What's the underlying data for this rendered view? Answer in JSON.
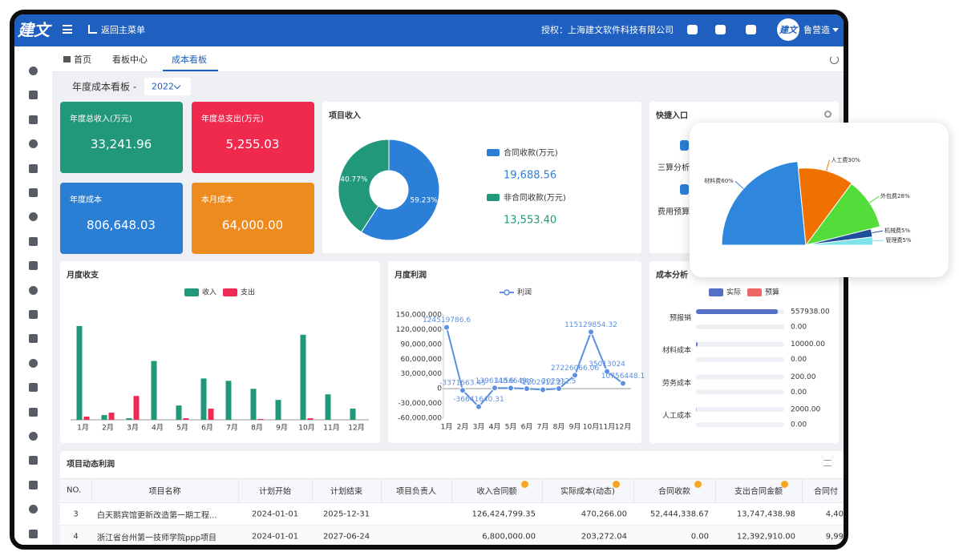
{
  "header": {
    "logo": "建文",
    "back": "返回主菜单",
    "license": "授权：上海建文软件科技有限公司",
    "user": "鲁营造"
  },
  "tabs": [
    "首页",
    "看板中心",
    "成本看板"
  ],
  "board": {
    "title": "年度成本看板 -",
    "year": "2022"
  },
  "kpis": [
    {
      "label": "年度总收入(万元)",
      "value": "33,241.96"
    },
    {
      "label": "年度总支出(万元)",
      "value": "5,255.03"
    },
    {
      "label": "年度成本",
      "value": "806,648.03"
    },
    {
      "label": "本月成本",
      "value": "64,000.00"
    }
  ],
  "quick": {
    "title": "快捷入口",
    "items": [
      "三算分析",
      "费用预算"
    ]
  },
  "chart_data": [
    {
      "type": "pie",
      "title": "项目收入",
      "donut": true,
      "categories": [
        "合同收款(万元)",
        "非合同收款(万元)"
      ],
      "values": [
        59.23,
        40.77
      ],
      "value_labels": [
        "59.23%",
        "40.77%"
      ],
      "colors": [
        "#2b7fd6",
        "#21987a"
      ],
      "amounts": [
        "19,688.56",
        "13,553.40"
      ]
    },
    {
      "type": "bar",
      "title": "月度收支",
      "categories": [
        "1月",
        "2月",
        "3月",
        "4月",
        "5月",
        "6月",
        "7月",
        "8月",
        "9月",
        "10月",
        "11月",
        "12月"
      ],
      "ylim": [
        0,
        130
      ],
      "series": [
        {
          "name": "收入",
          "color": "#21987a",
          "values": [
            118,
            6,
            2,
            74,
            18,
            52,
            49,
            39,
            25,
            107,
            32,
            14
          ]
        },
        {
          "name": "支出",
          "color": "#ee2a55",
          "values": [
            4,
            9,
            30,
            0,
            2,
            14,
            0,
            1,
            0,
            2,
            0,
            0
          ]
        }
      ]
    },
    {
      "type": "line",
      "title": "月度利润",
      "categories": [
        "1月",
        "2月",
        "3月",
        "4月",
        "5月",
        "6月",
        "7月",
        "8月",
        "9月",
        "10月",
        "11月",
        "12月"
      ],
      "grid": false,
      "series": [
        {
          "name": "利润",
          "color": "#5b8fe0",
          "values": [
            124519786.6,
            -3371663.45,
            -36641640.31,
            1396148.6,
            1156649,
            649,
            -2202912.25,
            202912.5,
            27226066.06,
            115129854.32,
            35013024,
            10756448.1
          ]
        }
      ],
      "ylim": [
        -60000000,
        150000000
      ],
      "yticks": [
        {
          "value": -60000000,
          "label": "-60,000,000"
        },
        {
          "value": -30000000,
          "label": "-30,000,000"
        },
        0,
        {
          "value": 30000000,
          "label": "30,000,000"
        },
        {
          "value": 60000000,
          "label": "60,000,000"
        },
        {
          "value": 90000000,
          "label": "90,000,000"
        },
        {
          "value": 120000000,
          "label": "120,000,000"
        },
        {
          "value": 150000000,
          "label": "150,000,000"
        }
      ]
    },
    {
      "type": "hbar",
      "title": "成本分析",
      "categories": [
        "预报销",
        "材料成本",
        "劳务成本",
        "人工成本"
      ],
      "xlim": [
        0,
        600000
      ],
      "series": [
        {
          "name": "实际",
          "color": "#5470c6",
          "values": [
            557938,
            10000,
            200,
            2000
          ],
          "value_labels": [
            "557938.00",
            "10000.00",
            "200.00",
            "2000.00"
          ]
        },
        {
          "name": "预算",
          "color": "#ee6666",
          "values": [
            0,
            0,
            0,
            0
          ],
          "value_labels": [
            "0.00",
            "0.00",
            "0.00",
            "0.00"
          ]
        }
      ]
    },
    {
      "type": "rose",
      "categories": [
        "材料费",
        "人工费",
        "外包费",
        "机械费",
        "管理费"
      ],
      "values": [
        60,
        30,
        28,
        5,
        5
      ],
      "value_labels": [
        "材料费60%",
        "人工费30%",
        "外包费28%",
        "机械费5%",
        "管理费5%"
      ],
      "colors": [
        "#2f87dd",
        "#f07000",
        "#52dd3a",
        "#1f4f9a",
        "#7ee3e8"
      ]
    }
  ],
  "table": {
    "title": "项目动态利润",
    "columns": [
      "NO.",
      "项目名称",
      "计划开始",
      "计划结束",
      "项目负责人",
      "收入合同额",
      "实际成本(动态)",
      "合同收款",
      "支出合同金额",
      "合同付"
    ],
    "rows": [
      [
        "3",
        "白天鹅宾馆更新改造第一期工程...",
        "2024-01-01",
        "2025-12-31",
        null,
        "126,424,799.35",
        "470,266.00",
        "52,444,338.67",
        "13,747,438.98",
        "4,40"
      ],
      [
        "4",
        "浙江省台州第一技师学院ppp项目",
        "2024-01-01",
        "2027-06-24",
        null,
        "6,800,000.00",
        "203,272.04",
        "0.00",
        "12,392,910.00",
        "9,99"
      ]
    ]
  }
}
